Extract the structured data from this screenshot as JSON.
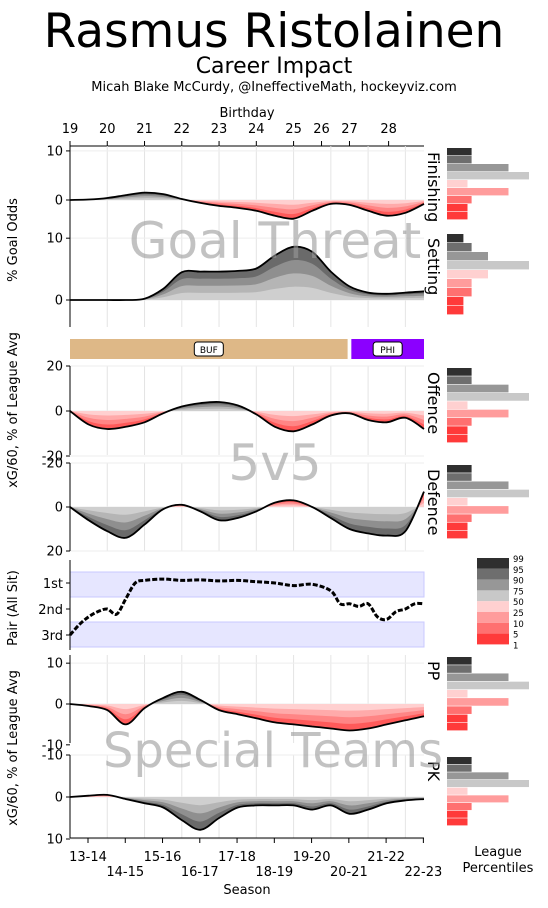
{
  "header": {
    "title": "Rasmus Ristolainen",
    "subtitle": "Career Impact",
    "credit": "Micah Blake McCurdy, @IneffectiveMath, hockeyviz.com"
  },
  "chart_data": {
    "type": "area",
    "top_axis": {
      "label": "Birthday",
      "ticks": [
        "19",
        "20",
        "21",
        "22",
        "23",
        "24",
        "25",
        "26",
        "27",
        "28"
      ],
      "tick_positions_season": [
        0.0,
        1.0,
        2.0,
        3.0,
        4.0,
        5.0,
        6.0,
        6.75,
        7.5,
        8.55
      ]
    },
    "x_axis": {
      "label": "Season",
      "domain_seasons": [
        0,
        9.5
      ],
      "seasons": [
        "13-14",
        "14-15",
        "15-16",
        "16-17",
        "17-18",
        "18-19",
        "19-20",
        "20-21",
        "21-22",
        "22-23"
      ]
    },
    "section_titles": [
      "Goal Threat",
      "5v5",
      "Special Teams"
    ],
    "group_ylabels": [
      "% Goal Odds",
      "xG/60, % of League Avg",
      "Pair (All Sit)",
      "xG/60, % of League Avg"
    ],
    "teams": [
      {
        "label": "BUF",
        "color": "#deb887",
        "from": 0,
        "to": 7.45
      },
      {
        "label": "PHI",
        "color": "#8b00ff",
        "from": 7.55,
        "to": 9.5
      }
    ],
    "percentile_legend": {
      "title": "League Percentiles",
      "bands": [
        {
          "label": "99",
          "color": "#2f2f2f"
        },
        {
          "label": "95",
          "color": "#6e6e6e"
        },
        {
          "label": "90",
          "color": "#979797"
        },
        {
          "label": "75",
          "color": "#c8c8c8"
        },
        {
          "label": "50",
          "color": "#ffd0d0"
        },
        {
          "label": "25",
          "color": "#ff9c9c"
        },
        {
          "label": "10",
          "color": "#ff7070"
        },
        {
          "label": "5",
          "color": "#ff3a3a"
        },
        {
          "label": "1",
          "color": ""
        }
      ]
    },
    "panels": [
      {
        "name": "Finishing",
        "ylim": [
          -2.5,
          11
        ],
        "inverted": false,
        "yticks": [
          10,
          0
        ],
        "x": [
          0,
          0.5,
          1,
          1.5,
          2,
          2.5,
          3,
          3.5,
          4,
          4.5,
          5,
          5.5,
          6,
          6.5,
          7,
          7.5,
          8,
          8.5,
          9,
          9.5
        ],
        "y": [
          0,
          0.1,
          0.4,
          1.0,
          1.5,
          1.2,
          0.2,
          -0.6,
          -1.2,
          -1.6,
          -2.2,
          -3.2,
          -3.8,
          -2.2,
          -0.8,
          -1.0,
          -2.2,
          -3.2,
          -2.6,
          -0.8
        ],
        "hist": [
          0.3,
          0.3,
          0.75,
          1.0,
          0.25,
          0.75,
          0.3,
          0.25,
          0.25
        ]
      },
      {
        "name": "Setting",
        "ylim": [
          -3.5,
          11
        ],
        "inverted": false,
        "yticks": [
          10,
          0
        ],
        "x": [
          0,
          0.5,
          1,
          1.5,
          2,
          2.5,
          3,
          3.5,
          4,
          4.5,
          5,
          5.5,
          6,
          6.5,
          7,
          7.5,
          8,
          8.5,
          9,
          9.5
        ],
        "y": [
          0,
          0,
          0,
          0,
          0.2,
          1.8,
          4.5,
          4.6,
          4.6,
          4.7,
          5.1,
          7.2,
          8.6,
          7.8,
          4.6,
          2.2,
          1.2,
          1.0,
          1.2,
          1.4
        ],
        "hist": [
          0.2,
          0.3,
          0.5,
          1.0,
          0.5,
          0.3,
          0.3,
          0.2,
          0.2
        ]
      },
      {
        "name": "Offence",
        "ylim": [
          -20,
          20
        ],
        "inverted": false,
        "yticks": [
          20,
          0,
          -20
        ],
        "x": [
          0,
          0.5,
          1,
          1.5,
          2,
          2.5,
          3,
          3.5,
          4,
          4.5,
          5,
          5.5,
          6,
          6.5,
          7,
          7.5,
          8,
          8.5,
          9,
          9.5
        ],
        "y": [
          0,
          -6,
          -8,
          -7,
          -5,
          -1,
          2,
          3.5,
          4,
          2.5,
          -1.5,
          -7,
          -9,
          -6,
          -2,
          -1,
          -4,
          -5,
          -3,
          -8
        ],
        "hist": [
          0.3,
          0.3,
          0.75,
          1.0,
          0.25,
          0.75,
          0.3,
          0.25,
          0.25
        ]
      },
      {
        "name": "Defence",
        "ylim": [
          -20,
          20
        ],
        "inverted": true,
        "yticks": [
          -20,
          0,
          20
        ],
        "x": [
          0,
          0.5,
          1,
          1.5,
          2,
          2.5,
          3,
          3.5,
          4,
          4.5,
          5,
          5.5,
          6,
          6.5,
          7,
          7.5,
          8,
          8.5,
          9,
          9.5
        ],
        "y": [
          0,
          6,
          11,
          14,
          8,
          1,
          -1,
          2,
          6,
          5,
          2,
          -2,
          -3,
          0,
          5,
          10,
          12,
          13,
          11,
          -7
        ],
        "hist": [
          0.3,
          0.3,
          0.75,
          1.0,
          0.25,
          0.75,
          0.3,
          0.25,
          0.25
        ]
      },
      {
        "name": "PP",
        "ylim": [
          -10,
          12
        ],
        "inverted": false,
        "yticks": [
          10,
          0,
          -10
        ],
        "x": [
          0,
          0.5,
          1,
          1.5,
          2,
          2.5,
          3,
          3.5,
          4,
          4.5,
          5,
          5.5,
          6,
          6.5,
          7,
          7.5,
          8,
          8.5,
          9,
          9.5
        ],
        "y": [
          0,
          -0.5,
          -1.5,
          -5,
          -1,
          1.5,
          3,
          1,
          -1.5,
          -2.5,
          -3.5,
          -4.5,
          -5,
          -5.5,
          -6,
          -6.5,
          -6,
          -5,
          -4,
          -3
        ],
        "hist": [
          0.3,
          0.3,
          0.75,
          1.0,
          0.25,
          0.75,
          0.3,
          0.25,
          0.25
        ]
      },
      {
        "name": "PK",
        "ylim": [
          -10,
          10
        ],
        "inverted": true,
        "yticks": [
          -10,
          0,
          10
        ],
        "x": [
          0,
          0.5,
          1,
          1.5,
          2,
          2.5,
          3,
          3.5,
          4,
          4.5,
          5,
          5.5,
          6,
          6.5,
          7,
          7.5,
          8,
          8.5,
          9,
          9.5
        ],
        "y": [
          0,
          -0.3,
          -0.5,
          0.5,
          1.5,
          2.5,
          5.5,
          7.8,
          5,
          2.5,
          2,
          2,
          2,
          3,
          2,
          4,
          3,
          1.5,
          0.8,
          0.5
        ],
        "hist": [
          0.3,
          0.3,
          0.75,
          1.0,
          0.25,
          0.75,
          0.3,
          0.25,
          0.25
        ]
      }
    ],
    "pair_panel": {
      "name": "Pair (All Sit)",
      "ylabels": [
        "1st",
        "2nd",
        "3rd"
      ],
      "x": [
        0,
        0.25,
        0.5,
        0.75,
        1,
        1.25,
        1.5,
        1.75,
        2,
        2.5,
        3,
        3.5,
        4,
        4.5,
        5,
        5.5,
        6,
        6.5,
        7,
        7.25,
        7.5,
        7.75,
        8,
        8.25,
        8.5,
        8.75,
        9,
        9.25,
        9.5
      ],
      "y": [
        3.0,
        2.6,
        2.3,
        2.1,
        2.0,
        2.2,
        1.6,
        1.0,
        0.9,
        0.85,
        0.9,
        0.88,
        0.92,
        0.9,
        0.95,
        1.0,
        1.1,
        1.05,
        1.3,
        1.8,
        1.8,
        1.9,
        1.8,
        2.3,
        2.4,
        2.1,
        2.0,
        1.8,
        1.8
      ]
    }
  }
}
